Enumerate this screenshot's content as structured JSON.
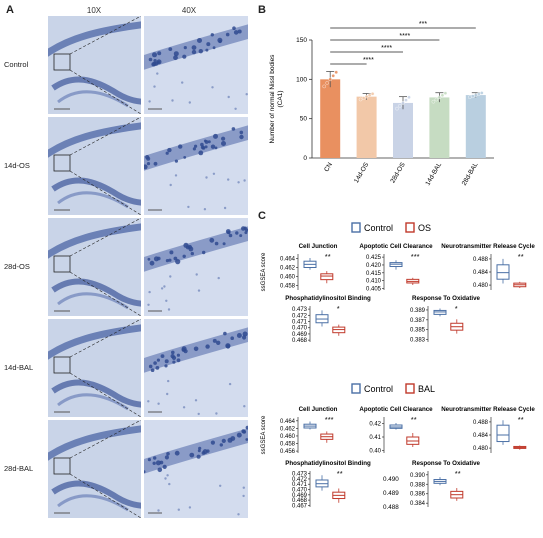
{
  "panel_a": {
    "label": "A",
    "col_headers": [
      "10X",
      "40X"
    ],
    "rows": [
      "Control",
      "14d-OS",
      "28d-OS",
      "14d-BAL",
      "28d-BAL"
    ]
  },
  "panel_b": {
    "label": "B",
    "ylabel": "Number of normal Nissl bodies\n(CA1)",
    "significance": [
      "***",
      "****",
      "****",
      "****"
    ]
  },
  "panel_c": {
    "label": "C",
    "legend_top": {
      "control": "Control",
      "treat": "OS"
    },
    "legend_bottom": {
      "control": "Control",
      "treat": "BAL"
    },
    "ylabel": "ssGSEA score",
    "extra_ticks": [
      "0.490",
      "0.489",
      "0.488"
    ]
  },
  "colors": {
    "control": "#4a6fa5",
    "treat": "#c0392b",
    "bar1": "#e99060",
    "bar2": "#f2c8a8",
    "bar3": "#c9d3e6",
    "bar4": "#c6dcc2",
    "bar5": "#b9cfe0"
  },
  "chart_data": [
    {
      "type": "bar",
      "title": "",
      "xlabel": "",
      "ylabel": "Number of normal Nissl bodies (CA1)",
      "categories": [
        "CN",
        "14d-OS",
        "28d-OS",
        "14d-BAL",
        "28d-BAL"
      ],
      "values": [
        100,
        78,
        70,
        77,
        80
      ],
      "errors": [
        10,
        4,
        8,
        6,
        3
      ],
      "ylim": [
        0,
        150
      ],
      "yticks": [
        0,
        50,
        100,
        150
      ]
    },
    {
      "type": "box",
      "group": "top",
      "panels": [
        {
          "title": "Cell Junction",
          "yticks": [
            "0.464",
            "0.462",
            "0.460",
            "0.458"
          ],
          "ylim": [
            0.457,
            0.465
          ],
          "sig": "**",
          "control": {
            "min": 0.4615,
            "q1": 0.462,
            "med": 0.4627,
            "q3": 0.4634,
            "max": 0.4641
          },
          "treat": {
            "min": 0.4585,
            "q1": 0.4593,
            "med": 0.4601,
            "q3": 0.4606,
            "max": 0.4612
          }
        },
        {
          "title": "Apoptotic Cell Clearance",
          "yticks": [
            "0.425",
            "0.420",
            "0.415",
            "0.410",
            "0.405"
          ],
          "ylim": [
            0.404,
            0.427
          ],
          "sig": "***",
          "control": {
            "min": 0.417,
            "q1": 0.419,
            "med": 0.4205,
            "q3": 0.4215,
            "max": 0.423
          },
          "treat": {
            "min": 0.4072,
            "q1": 0.4085,
            "med": 0.4095,
            "q3": 0.4108,
            "max": 0.4118
          }
        },
        {
          "title": "Neurotransmitter Release Cycle",
          "yticks": [
            "0.488",
            "0.484",
            "0.480"
          ],
          "ylim": [
            0.4785,
            0.4895
          ],
          "sig": "**",
          "control": {
            "min": 0.4805,
            "q1": 0.4818,
            "med": 0.4838,
            "q3": 0.4862,
            "max": 0.488
          },
          "treat": {
            "min": 0.4791,
            "q1": 0.4795,
            "med": 0.4801,
            "q3": 0.4806,
            "max": 0.481
          }
        },
        {
          "title": "Phosphatidylinositol Binding",
          "yticks": [
            "0.473",
            "0.472",
            "0.471",
            "0.470",
            "0.469",
            "0.468"
          ],
          "ylim": [
            0.4677,
            0.4735
          ],
          "sig": "*",
          "control": {
            "min": 0.4702,
            "q1": 0.4708,
            "med": 0.4714,
            "q3": 0.4721,
            "max": 0.4728
          },
          "treat": {
            "min": 0.4687,
            "q1": 0.4692,
            "med": 0.4697,
            "q3": 0.4701,
            "max": 0.4705
          }
        },
        {
          "title": "Response To Oxidative",
          "yticks": [
            "0.389",
            "0.387",
            "0.385",
            "0.383"
          ],
          "ylim": [
            0.3825,
            0.3898
          ],
          "sig": "*",
          "control": {
            "min": 0.3877,
            "q1": 0.3881,
            "med": 0.3886,
            "q3": 0.3889,
            "max": 0.3893
          },
          "treat": {
            "min": 0.3842,
            "q1": 0.3849,
            "med": 0.3856,
            "q3": 0.3863,
            "max": 0.3871
          }
        }
      ]
    },
    {
      "type": "box",
      "group": "bottom",
      "panels": [
        {
          "title": "Cell Junction",
          "yticks": [
            "0.464",
            "0.462",
            "0.460",
            "0.458",
            "0.456"
          ],
          "ylim": [
            0.4555,
            0.465
          ],
          "sig": "***",
          "control": {
            "min": 0.4617,
            "q1": 0.4621,
            "med": 0.4626,
            "q3": 0.4631,
            "max": 0.4638
          },
          "treat": {
            "min": 0.4582,
            "q1": 0.4591,
            "med": 0.4598,
            "q3": 0.4605,
            "max": 0.4612
          }
        },
        {
          "title": "Apoptotic Cell Clearance",
          "yticks": [
            "0.42",
            "0.41",
            "0.40"
          ],
          "ylim": [
            0.398,
            0.425
          ],
          "sig": "**",
          "control": {
            "min": 0.4155,
            "q1": 0.4165,
            "med": 0.4175,
            "q3": 0.419,
            "max": 0.4205
          },
          "treat": {
            "min": 0.4025,
            "q1": 0.4045,
            "med": 0.407,
            "q3": 0.41,
            "max": 0.413
          }
        },
        {
          "title": "Neurotransmitter Release Cycle",
          "yticks": [
            "0.488",
            "0.484",
            "0.480"
          ],
          "ylim": [
            0.4785,
            0.4895
          ],
          "sig": "**",
          "control": {
            "min": 0.481,
            "q1": 0.482,
            "med": 0.484,
            "q3": 0.487,
            "max": 0.4885
          },
          "treat": {
            "min": 0.4795,
            "q1": 0.4799,
            "med": 0.4802,
            "q3": 0.4805,
            "max": 0.4808
          }
        },
        {
          "title": "Phosphatidylinositol Binding",
          "yticks": [
            "0.473",
            "0.472",
            "0.471",
            "0.470",
            "0.469",
            "0.468",
            "0.467"
          ],
          "ylim": [
            0.4667,
            0.4735
          ],
          "sig": "**",
          "control": {
            "min": 0.4698,
            "q1": 0.4705,
            "med": 0.4711,
            "q3": 0.4718,
            "max": 0.4727
          },
          "treat": {
            "min": 0.4675,
            "q1": 0.4683,
            "med": 0.4689,
            "q3": 0.4695,
            "max": 0.4702
          }
        },
        {
          "title": "Response To Oxidative",
          "yticks": [
            "0.390",
            "0.388",
            "0.386",
            "0.384"
          ],
          "ylim": [
            0.3832,
            0.3908
          ],
          "sig": "**",
          "control": {
            "min": 0.3878,
            "q1": 0.3882,
            "med": 0.3886,
            "q3": 0.389,
            "max": 0.3895
          },
          "treat": {
            "min": 0.3845,
            "q1": 0.3851,
            "med": 0.3858,
            "q3": 0.3865,
            "max": 0.3872
          }
        }
      ]
    }
  ]
}
